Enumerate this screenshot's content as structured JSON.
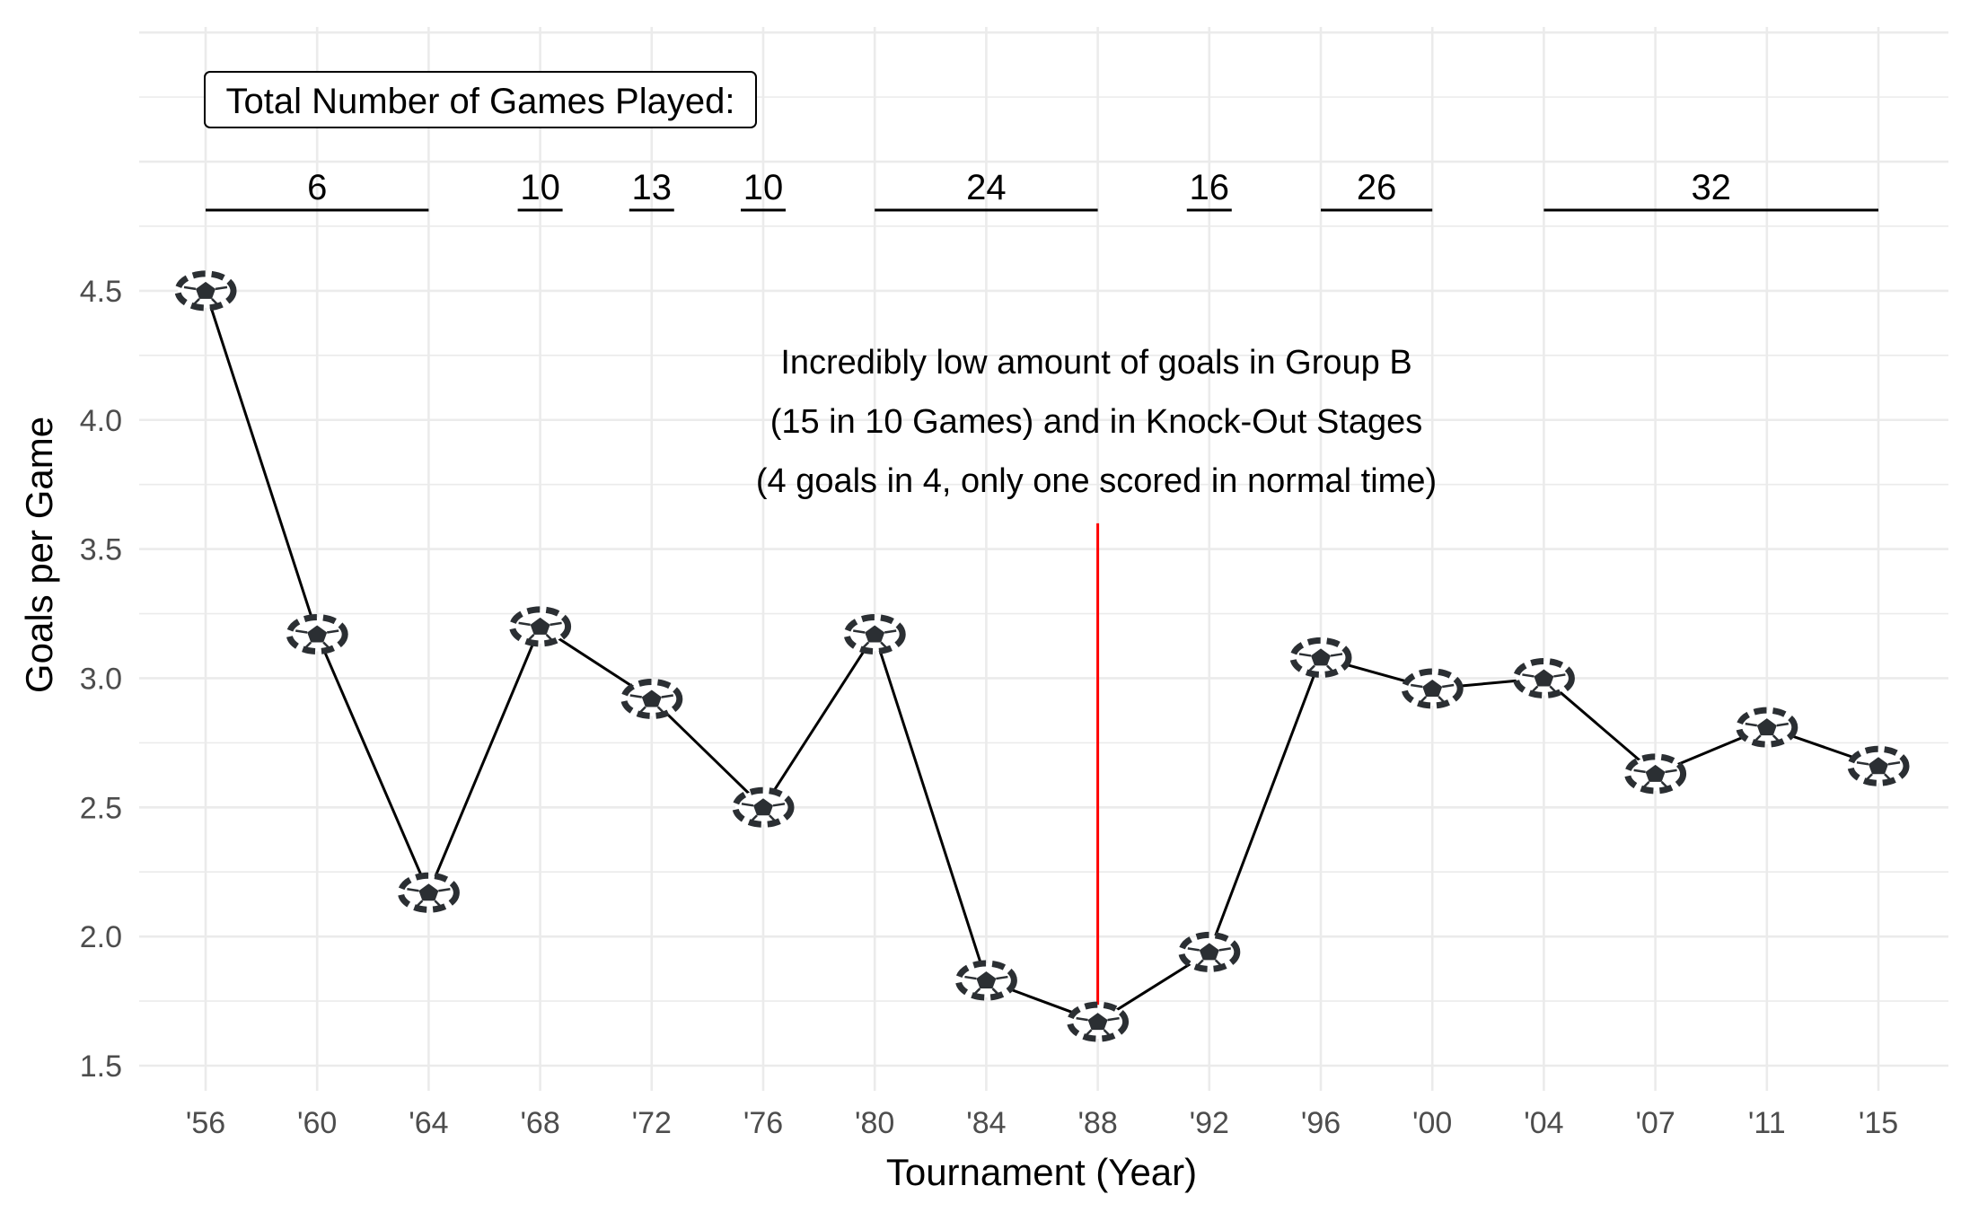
{
  "chart_data": {
    "type": "line",
    "xlabel": "Tournament (Year)",
    "ylabel": "Goals per Game",
    "ylim": [
      1.5,
      4.5
    ],
    "y_ticks": [
      "1.5",
      "2.0",
      "2.5",
      "3.0",
      "3.5",
      "4.0",
      "4.5"
    ],
    "categories": [
      "'56",
      "'60",
      "'64",
      "'68",
      "'72",
      "'76",
      "'80",
      "'84",
      "'88",
      "'92",
      "'96",
      "'00",
      "'04",
      "'07",
      "'11",
      "'15"
    ],
    "values": [
      4.5,
      3.17,
      2.17,
      3.2,
      2.92,
      2.5,
      3.17,
      1.83,
      1.67,
      1.94,
      3.08,
      2.96,
      3.0,
      2.63,
      2.81,
      2.66
    ],
    "marker": "soccer-ball",
    "grid": true,
    "colors": {
      "line": "#000000",
      "annotation_line": "#ff0000",
      "grid": "#ebebeb",
      "ball_dark": "#2b2f33",
      "ball_light": "#ffffff"
    },
    "games_box_label": "Total Number of Games Played:",
    "games_played": [
      {
        "label": "6",
        "from": "'56",
        "to": "'64"
      },
      {
        "label": "10",
        "from": "'68",
        "to": "'68"
      },
      {
        "label": "13",
        "from": "'72",
        "to": "'72"
      },
      {
        "label": "10",
        "from": "'76",
        "to": "'76"
      },
      {
        "label": "24",
        "from": "'80",
        "to": "'88"
      },
      {
        "label": "16",
        "from": "'92",
        "to": "'92"
      },
      {
        "label": "26",
        "from": "'96",
        "to": "'00"
      },
      {
        "label": "32",
        "from": "'04",
        "to": "'15"
      }
    ],
    "annotation": {
      "category": "'88",
      "y_top": 3.6,
      "lines": [
        "Incredibly low amount of goals in Group B",
        "(15 in 10 Games) and in Knock-Out Stages",
        "(4 goals in 4, only one scored in normal time)"
      ]
    }
  }
}
